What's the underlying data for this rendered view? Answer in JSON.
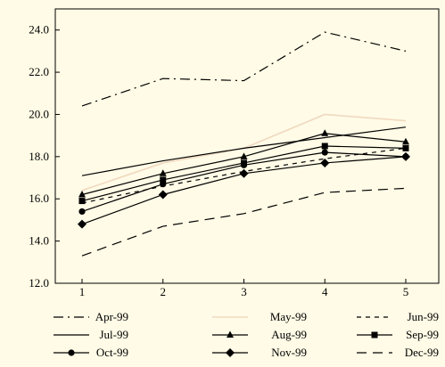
{
  "chart_data": {
    "type": "line",
    "x": [
      1,
      2,
      3,
      4,
      5
    ],
    "ylim": [
      12.0,
      25.0
    ],
    "yticks": [
      12.0,
      14.0,
      16.0,
      18.0,
      20.0,
      22.0,
      24.0
    ],
    "ytick_labels": [
      "12.0",
      "14.0",
      "16.0",
      "18.0",
      "20.0",
      "22.0",
      "24.0"
    ],
    "xtick_labels": [
      "1",
      "2",
      "3",
      "4",
      "5"
    ],
    "grid": false,
    "legend_position": "bottom",
    "title": "",
    "xlabel": "",
    "ylabel": "",
    "series": [
      {
        "name": "Apr-99",
        "values": [
          20.4,
          21.7,
          21.6,
          23.9,
          23.0
        ],
        "color": "#000000",
        "dash": "dashdot",
        "marker": "none"
      },
      {
        "name": "May-99",
        "values": [
          16.4,
          17.7,
          18.4,
          20.0,
          19.7
        ],
        "color": "#f0d9c0",
        "dash": "solid",
        "marker": "none"
      },
      {
        "name": "Jun-99",
        "values": [
          15.8,
          16.6,
          17.3,
          17.9,
          18.4
        ],
        "color": "#000000",
        "dash": "dotted",
        "marker": "none"
      },
      {
        "name": "Jul-99",
        "values": [
          17.1,
          17.8,
          18.4,
          18.9,
          19.4
        ],
        "color": "#000000",
        "dash": "solid",
        "marker": "none"
      },
      {
        "name": "Aug-99",
        "values": [
          16.2,
          17.2,
          18.0,
          19.1,
          18.7
        ],
        "color": "#000000",
        "dash": "solid",
        "marker": "triangle"
      },
      {
        "name": "Sep-99",
        "values": [
          15.9,
          16.9,
          17.7,
          18.5,
          18.4
        ],
        "color": "#000000",
        "dash": "solid",
        "marker": "square"
      },
      {
        "name": "Oct-99",
        "values": [
          15.4,
          16.7,
          17.6,
          18.2,
          18.0
        ],
        "color": "#000000",
        "dash": "solid",
        "marker": "circle"
      },
      {
        "name": "Nov-99",
        "values": [
          14.8,
          16.2,
          17.2,
          17.7,
          18.0
        ],
        "color": "#000000",
        "dash": "solid",
        "marker": "diamond"
      },
      {
        "name": "Dec-99",
        "values": [
          13.3,
          14.7,
          15.3,
          16.3,
          16.5
        ],
        "color": "#000000",
        "dash": "dashed",
        "marker": "none"
      }
    ]
  }
}
